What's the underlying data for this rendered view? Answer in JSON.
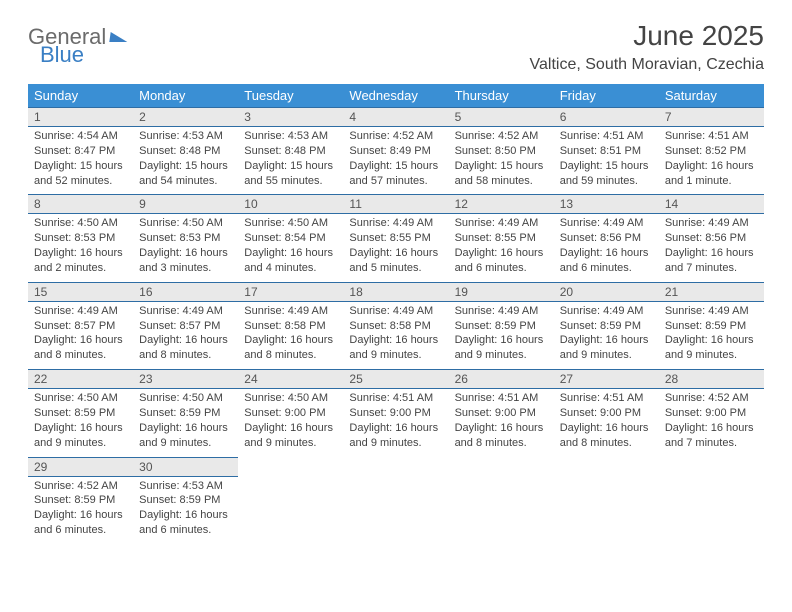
{
  "logo": {
    "word1": "General",
    "word2": "Blue"
  },
  "title": "June 2025",
  "location": "Valtice, South Moravian, Czechia",
  "colors": {
    "header_bg": "#3a8fd4",
    "header_text": "#ffffff",
    "rule": "#2e6da4",
    "daynum_bg": "#e9e9e9",
    "text": "#444444",
    "logo_blue": "#3a7fc4"
  },
  "day_headers": [
    "Sunday",
    "Monday",
    "Tuesday",
    "Wednesday",
    "Thursday",
    "Friday",
    "Saturday"
  ],
  "weeks": [
    [
      {
        "n": "1",
        "sr": "Sunrise: 4:54 AM",
        "ss": "Sunset: 8:47 PM",
        "dl": "Daylight: 15 hours and 52 minutes."
      },
      {
        "n": "2",
        "sr": "Sunrise: 4:53 AM",
        "ss": "Sunset: 8:48 PM",
        "dl": "Daylight: 15 hours and 54 minutes."
      },
      {
        "n": "3",
        "sr": "Sunrise: 4:53 AM",
        "ss": "Sunset: 8:48 PM",
        "dl": "Daylight: 15 hours and 55 minutes."
      },
      {
        "n": "4",
        "sr": "Sunrise: 4:52 AM",
        "ss": "Sunset: 8:49 PM",
        "dl": "Daylight: 15 hours and 57 minutes."
      },
      {
        "n": "5",
        "sr": "Sunrise: 4:52 AM",
        "ss": "Sunset: 8:50 PM",
        "dl": "Daylight: 15 hours and 58 minutes."
      },
      {
        "n": "6",
        "sr": "Sunrise: 4:51 AM",
        "ss": "Sunset: 8:51 PM",
        "dl": "Daylight: 15 hours and 59 minutes."
      },
      {
        "n": "7",
        "sr": "Sunrise: 4:51 AM",
        "ss": "Sunset: 8:52 PM",
        "dl": "Daylight: 16 hours and 1 minute."
      }
    ],
    [
      {
        "n": "8",
        "sr": "Sunrise: 4:50 AM",
        "ss": "Sunset: 8:53 PM",
        "dl": "Daylight: 16 hours and 2 minutes."
      },
      {
        "n": "9",
        "sr": "Sunrise: 4:50 AM",
        "ss": "Sunset: 8:53 PM",
        "dl": "Daylight: 16 hours and 3 minutes."
      },
      {
        "n": "10",
        "sr": "Sunrise: 4:50 AM",
        "ss": "Sunset: 8:54 PM",
        "dl": "Daylight: 16 hours and 4 minutes."
      },
      {
        "n": "11",
        "sr": "Sunrise: 4:49 AM",
        "ss": "Sunset: 8:55 PM",
        "dl": "Daylight: 16 hours and 5 minutes."
      },
      {
        "n": "12",
        "sr": "Sunrise: 4:49 AM",
        "ss": "Sunset: 8:55 PM",
        "dl": "Daylight: 16 hours and 6 minutes."
      },
      {
        "n": "13",
        "sr": "Sunrise: 4:49 AM",
        "ss": "Sunset: 8:56 PM",
        "dl": "Daylight: 16 hours and 6 minutes."
      },
      {
        "n": "14",
        "sr": "Sunrise: 4:49 AM",
        "ss": "Sunset: 8:56 PM",
        "dl": "Daylight: 16 hours and 7 minutes."
      }
    ],
    [
      {
        "n": "15",
        "sr": "Sunrise: 4:49 AM",
        "ss": "Sunset: 8:57 PM",
        "dl": "Daylight: 16 hours and 8 minutes."
      },
      {
        "n": "16",
        "sr": "Sunrise: 4:49 AM",
        "ss": "Sunset: 8:57 PM",
        "dl": "Daylight: 16 hours and 8 minutes."
      },
      {
        "n": "17",
        "sr": "Sunrise: 4:49 AM",
        "ss": "Sunset: 8:58 PM",
        "dl": "Daylight: 16 hours and 8 minutes."
      },
      {
        "n": "18",
        "sr": "Sunrise: 4:49 AM",
        "ss": "Sunset: 8:58 PM",
        "dl": "Daylight: 16 hours and 9 minutes."
      },
      {
        "n": "19",
        "sr": "Sunrise: 4:49 AM",
        "ss": "Sunset: 8:59 PM",
        "dl": "Daylight: 16 hours and 9 minutes."
      },
      {
        "n": "20",
        "sr": "Sunrise: 4:49 AM",
        "ss": "Sunset: 8:59 PM",
        "dl": "Daylight: 16 hours and 9 minutes."
      },
      {
        "n": "21",
        "sr": "Sunrise: 4:49 AM",
        "ss": "Sunset: 8:59 PM",
        "dl": "Daylight: 16 hours and 9 minutes."
      }
    ],
    [
      {
        "n": "22",
        "sr": "Sunrise: 4:50 AM",
        "ss": "Sunset: 8:59 PM",
        "dl": "Daylight: 16 hours and 9 minutes."
      },
      {
        "n": "23",
        "sr": "Sunrise: 4:50 AM",
        "ss": "Sunset: 8:59 PM",
        "dl": "Daylight: 16 hours and 9 minutes."
      },
      {
        "n": "24",
        "sr": "Sunrise: 4:50 AM",
        "ss": "Sunset: 9:00 PM",
        "dl": "Daylight: 16 hours and 9 minutes."
      },
      {
        "n": "25",
        "sr": "Sunrise: 4:51 AM",
        "ss": "Sunset: 9:00 PM",
        "dl": "Daylight: 16 hours and 9 minutes."
      },
      {
        "n": "26",
        "sr": "Sunrise: 4:51 AM",
        "ss": "Sunset: 9:00 PM",
        "dl": "Daylight: 16 hours and 8 minutes."
      },
      {
        "n": "27",
        "sr": "Sunrise: 4:51 AM",
        "ss": "Sunset: 9:00 PM",
        "dl": "Daylight: 16 hours and 8 minutes."
      },
      {
        "n": "28",
        "sr": "Sunrise: 4:52 AM",
        "ss": "Sunset: 9:00 PM",
        "dl": "Daylight: 16 hours and 7 minutes."
      }
    ],
    [
      {
        "n": "29",
        "sr": "Sunrise: 4:52 AM",
        "ss": "Sunset: 8:59 PM",
        "dl": "Daylight: 16 hours and 6 minutes."
      },
      {
        "n": "30",
        "sr": "Sunrise: 4:53 AM",
        "ss": "Sunset: 8:59 PM",
        "dl": "Daylight: 16 hours and 6 minutes."
      },
      null,
      null,
      null,
      null,
      null
    ]
  ]
}
